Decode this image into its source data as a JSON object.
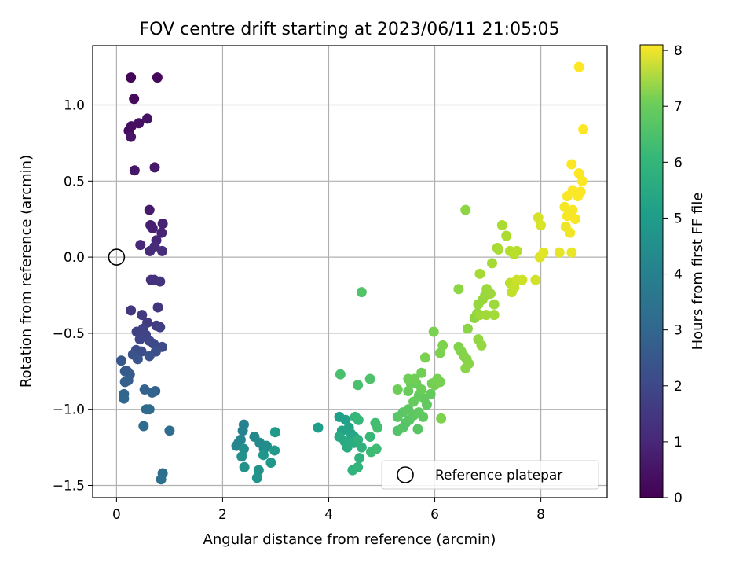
{
  "chart_data": {
    "type": "scatter",
    "title": "FOV centre drift starting at 2023/06/11 21:05:05",
    "xlabel": "Angular distance from reference (arcmin)",
    "ylabel": "Rotation from reference (arcmin)",
    "xlim": [
      -0.45,
      9.25
    ],
    "ylim": [
      -1.58,
      1.39
    ],
    "xticks": [
      0,
      2,
      4,
      6,
      8
    ],
    "xtick_labels": [
      "0",
      "2",
      "4",
      "6",
      "8"
    ],
    "yticks": [
      -1.5,
      -1.0,
      -0.5,
      0.0,
      0.5,
      1.0
    ],
    "ytick_labels": [
      "−1.5",
      "−1.0",
      "−0.5",
      "0.0",
      "0.5",
      "1.0"
    ],
    "grid": true,
    "colorbar": {
      "label": "Hours from first FF file",
      "colormap": "viridis",
      "range": [
        0,
        8.1
      ],
      "ticks": [
        0,
        1,
        2,
        3,
        4,
        5,
        6,
        7,
        8
      ],
      "tick_labels": [
        "0",
        "1",
        "2",
        "3",
        "4",
        "5",
        "6",
        "7",
        "8"
      ]
    },
    "legend": {
      "position": "lower-right",
      "entries": [
        "Reference platepar"
      ]
    },
    "reference_point": {
      "x": 0.0,
      "y": 0.0
    },
    "series": [
      {
        "points": [
          [
            0.27,
            1.18,
            0.1
          ],
          [
            0.77,
            1.18,
            0.15
          ],
          [
            0.33,
            1.04,
            0.2
          ],
          [
            0.23,
            0.83,
            0.25
          ],
          [
            0.28,
            0.86,
            0.3
          ],
          [
            0.42,
            0.88,
            0.35
          ],
          [
            0.58,
            0.91,
            0.4
          ],
          [
            0.27,
            0.79,
            0.45
          ],
          [
            0.34,
            0.57,
            0.5
          ],
          [
            0.72,
            0.59,
            0.55
          ],
          [
            0.62,
            0.31,
            0.6
          ],
          [
            0.64,
            0.21,
            0.65
          ],
          [
            0.68,
            0.19,
            0.7
          ],
          [
            0.87,
            0.22,
            0.75
          ],
          [
            0.85,
            0.16,
            0.8
          ],
          [
            0.75,
            0.11,
            0.85
          ],
          [
            0.45,
            0.08,
            0.9
          ],
          [
            0.63,
            0.04,
            0.95
          ],
          [
            0.72,
            0.07,
            1.0
          ],
          [
            0.86,
            0.04,
            1.05
          ],
          [
            0.65,
            -0.15,
            1.1
          ],
          [
            0.71,
            -0.15,
            1.15
          ],
          [
            0.82,
            -0.16,
            1.2
          ],
          [
            0.78,
            -0.33,
            1.25
          ],
          [
            0.27,
            -0.35,
            1.3
          ],
          [
            0.48,
            -0.38,
            1.35
          ],
          [
            0.58,
            -0.43,
            1.4
          ],
          [
            0.75,
            -0.45,
            1.45
          ],
          [
            0.82,
            -0.46,
            1.5
          ],
          [
            0.38,
            -0.49,
            1.55
          ],
          [
            0.5,
            -0.47,
            1.6
          ],
          [
            0.55,
            -0.51,
            1.65
          ],
          [
            0.44,
            -0.54,
            1.7
          ],
          [
            0.62,
            -0.55,
            1.75
          ],
          [
            0.7,
            -0.57,
            1.8
          ],
          [
            0.86,
            -0.59,
            1.85
          ],
          [
            0.37,
            -0.61,
            1.9
          ],
          [
            0.47,
            -0.62,
            1.95
          ],
          [
            0.74,
            -0.62,
            2.0
          ],
          [
            0.31,
            -0.64,
            2.05
          ],
          [
            0.62,
            -0.65,
            2.1
          ],
          [
            0.4,
            -0.67,
            2.15
          ],
          [
            0.09,
            -0.68,
            2.2
          ],
          [
            0.2,
            -0.75,
            2.25
          ],
          [
            0.16,
            -0.75,
            2.3
          ],
          [
            0.25,
            -0.77,
            2.35
          ],
          [
            0.22,
            -0.81,
            2.4
          ],
          [
            0.16,
            -0.82,
            2.45
          ],
          [
            0.53,
            -0.87,
            2.5
          ],
          [
            0.73,
            -0.88,
            2.55
          ],
          [
            0.67,
            -0.89,
            2.6
          ],
          [
            0.14,
            -0.9,
            2.65
          ],
          [
            0.14,
            -0.93,
            2.7
          ],
          [
            0.56,
            -1.0,
            2.75
          ],
          [
            0.62,
            -1.0,
            2.8
          ],
          [
            0.51,
            -1.11,
            2.85
          ],
          [
            1.0,
            -1.14,
            2.9
          ],
          [
            0.87,
            -1.42,
            2.95
          ],
          [
            0.84,
            -1.46,
            3.0
          ],
          [
            2.4,
            -1.1,
            3.55
          ],
          [
            2.38,
            -1.14,
            3.6
          ],
          [
            2.34,
            -1.2,
            3.65
          ],
          [
            2.3,
            -1.22,
            3.7
          ],
          [
            2.26,
            -1.24,
            3.75
          ],
          [
            2.6,
            -1.18,
            3.8
          ],
          [
            2.7,
            -1.22,
            3.85
          ],
          [
            2.78,
            -1.26,
            3.9
          ],
          [
            2.83,
            -1.24,
            3.95
          ],
          [
            2.4,
            -1.26,
            4.0
          ],
          [
            2.36,
            -1.31,
            4.05
          ],
          [
            2.41,
            -1.38,
            4.1
          ],
          [
            2.68,
            -1.4,
            4.15
          ],
          [
            2.65,
            -1.45,
            4.2
          ],
          [
            2.77,
            -1.3,
            4.25
          ],
          [
            2.98,
            -1.27,
            4.3
          ],
          [
            2.91,
            -1.35,
            4.35
          ],
          [
            2.99,
            -1.15,
            4.4
          ],
          [
            3.8,
            -1.12,
            4.5
          ],
          [
            4.2,
            -1.05,
            4.55
          ],
          [
            4.32,
            -1.07,
            4.6
          ],
          [
            4.38,
            -1.12,
            4.65
          ],
          [
            4.25,
            -1.14,
            4.7
          ],
          [
            4.42,
            -1.16,
            4.75
          ],
          [
            4.48,
            -1.18,
            4.8
          ],
          [
            4.2,
            -1.18,
            4.85
          ],
          [
            4.3,
            -1.21,
            4.9
          ],
          [
            4.4,
            -1.22,
            4.95
          ],
          [
            4.35,
            -1.25,
            5.0
          ],
          [
            4.48,
            -1.22,
            5.05
          ],
          [
            4.55,
            -1.2,
            5.1
          ],
          [
            4.62,
            -1.25,
            5.15
          ],
          [
            4.58,
            -1.32,
            5.2
          ],
          [
            4.45,
            -1.4,
            5.25
          ],
          [
            4.55,
            -1.38,
            5.3
          ],
          [
            4.5,
            -1.05,
            5.35
          ],
          [
            4.56,
            -1.07,
            5.4
          ],
          [
            4.78,
            -1.18,
            5.45
          ],
          [
            4.8,
            -1.28,
            5.5
          ],
          [
            4.9,
            -1.26,
            5.55
          ],
          [
            4.88,
            -1.09,
            5.6
          ],
          [
            4.92,
            -1.12,
            5.65
          ],
          [
            4.22,
            -0.77,
            5.7
          ],
          [
            4.55,
            -0.84,
            5.75
          ],
          [
            4.78,
            -0.8,
            5.8
          ],
          [
            4.62,
            -0.23,
            5.85
          ],
          [
            5.3,
            -1.14,
            5.85
          ],
          [
            5.4,
            -1.12,
            5.9
          ],
          [
            5.45,
            -1.09,
            5.92
          ],
          [
            5.52,
            -1.07,
            5.94
          ],
          [
            5.68,
            -1.13,
            5.96
          ],
          [
            5.3,
            -1.05,
            5.98
          ],
          [
            5.4,
            -1.02,
            6.0
          ],
          [
            5.5,
            -1.0,
            6.02
          ],
          [
            5.6,
            -1.04,
            6.04
          ],
          [
            5.7,
            -1.02,
            6.06
          ],
          [
            5.78,
            -1.05,
            6.08
          ],
          [
            5.85,
            -0.97,
            6.1
          ],
          [
            5.8,
            -0.93,
            6.12
          ],
          [
            5.92,
            -0.9,
            6.14
          ],
          [
            5.7,
            -0.91,
            6.16
          ],
          [
            5.6,
            -0.95,
            6.18
          ],
          [
            5.5,
            -0.88,
            6.2
          ],
          [
            5.55,
            -0.83,
            6.22
          ],
          [
            5.65,
            -0.83,
            6.24
          ],
          [
            5.75,
            -0.87,
            6.26
          ],
          [
            5.3,
            -0.87,
            6.28
          ],
          [
            5.5,
            -0.8,
            6.3
          ],
          [
            5.62,
            -0.8,
            6.32
          ],
          [
            5.75,
            -0.76,
            6.34
          ],
          [
            5.95,
            -0.83,
            6.36
          ],
          [
            6.0,
            -0.84,
            6.38
          ],
          [
            6.05,
            -0.8,
            6.4
          ],
          [
            6.1,
            -0.82,
            6.42
          ],
          [
            5.82,
            -0.66,
            6.44
          ],
          [
            5.98,
            -0.49,
            6.46
          ],
          [
            6.1,
            -0.63,
            6.48
          ],
          [
            6.15,
            -0.58,
            6.5
          ],
          [
            6.12,
            -1.06,
            6.52
          ],
          [
            6.45,
            -0.59,
            6.54
          ],
          [
            6.5,
            -0.62,
            6.56
          ],
          [
            6.55,
            -0.65,
            6.58
          ],
          [
            6.6,
            -0.67,
            6.6
          ],
          [
            6.64,
            -0.7,
            6.62
          ],
          [
            6.58,
            -0.73,
            6.64
          ],
          [
            6.62,
            -0.47,
            6.66
          ],
          [
            6.45,
            -0.21,
            6.68
          ],
          [
            6.58,
            0.31,
            6.7
          ],
          [
            6.75,
            -0.4,
            6.72
          ],
          [
            6.8,
            -0.37,
            6.74
          ],
          [
            6.82,
            -0.54,
            6.76
          ],
          [
            6.88,
            -0.58,
            6.78
          ],
          [
            6.82,
            -0.31,
            6.8
          ],
          [
            6.9,
            -0.28,
            6.82
          ],
          [
            6.95,
            -0.25,
            6.84
          ],
          [
            6.98,
            -0.21,
            6.86
          ],
          [
            7.05,
            -0.24,
            6.88
          ],
          [
            7.12,
            -0.31,
            6.9
          ],
          [
            6.85,
            -0.38,
            6.92
          ],
          [
            6.97,
            -0.38,
            6.94
          ],
          [
            7.12,
            -0.38,
            6.96
          ],
          [
            7.08,
            -0.04,
            6.98
          ],
          [
            6.85,
            -0.11,
            7.0
          ],
          [
            7.18,
            0.06,
            7.02
          ],
          [
            7.2,
            0.05,
            7.04
          ],
          [
            7.27,
            0.21,
            7.05
          ],
          [
            7.35,
            0.14,
            7.1
          ],
          [
            7.42,
            0.04,
            7.15
          ],
          [
            7.55,
            0.04,
            7.2
          ],
          [
            7.5,
            0.02,
            7.25
          ],
          [
            7.42,
            -0.17,
            7.3
          ],
          [
            7.45,
            -0.23,
            7.35
          ],
          [
            7.5,
            -0.2,
            7.4
          ],
          [
            7.55,
            -0.15,
            7.45
          ],
          [
            7.65,
            -0.15,
            7.5
          ],
          [
            7.9,
            -0.15,
            7.55
          ],
          [
            7.95,
            0.26,
            7.6
          ],
          [
            8.0,
            0.21,
            7.65
          ],
          [
            7.98,
            0.0,
            7.7
          ],
          [
            8.05,
            0.03,
            7.75
          ],
          [
            8.35,
            0.03,
            7.8
          ],
          [
            8.58,
            0.03,
            7.85
          ],
          [
            8.47,
            0.2,
            7.9
          ],
          [
            8.55,
            0.16,
            7.95
          ],
          [
            8.45,
            0.33,
            8.0
          ],
          [
            8.5,
            0.27,
            8.0
          ],
          [
            8.6,
            0.31,
            8.02
          ],
          [
            8.65,
            0.25,
            8.04
          ],
          [
            8.5,
            0.4,
            8.05
          ],
          [
            8.6,
            0.44,
            8.06
          ],
          [
            8.7,
            0.4,
            8.07
          ],
          [
            8.75,
            0.43,
            8.08
          ],
          [
            8.78,
            0.5,
            8.09
          ],
          [
            8.72,
            0.55,
            8.1
          ],
          [
            8.58,
            0.61,
            8.1
          ],
          [
            8.8,
            0.84,
            8.1
          ],
          [
            8.72,
            1.25,
            8.1
          ]
        ]
      }
    ]
  }
}
